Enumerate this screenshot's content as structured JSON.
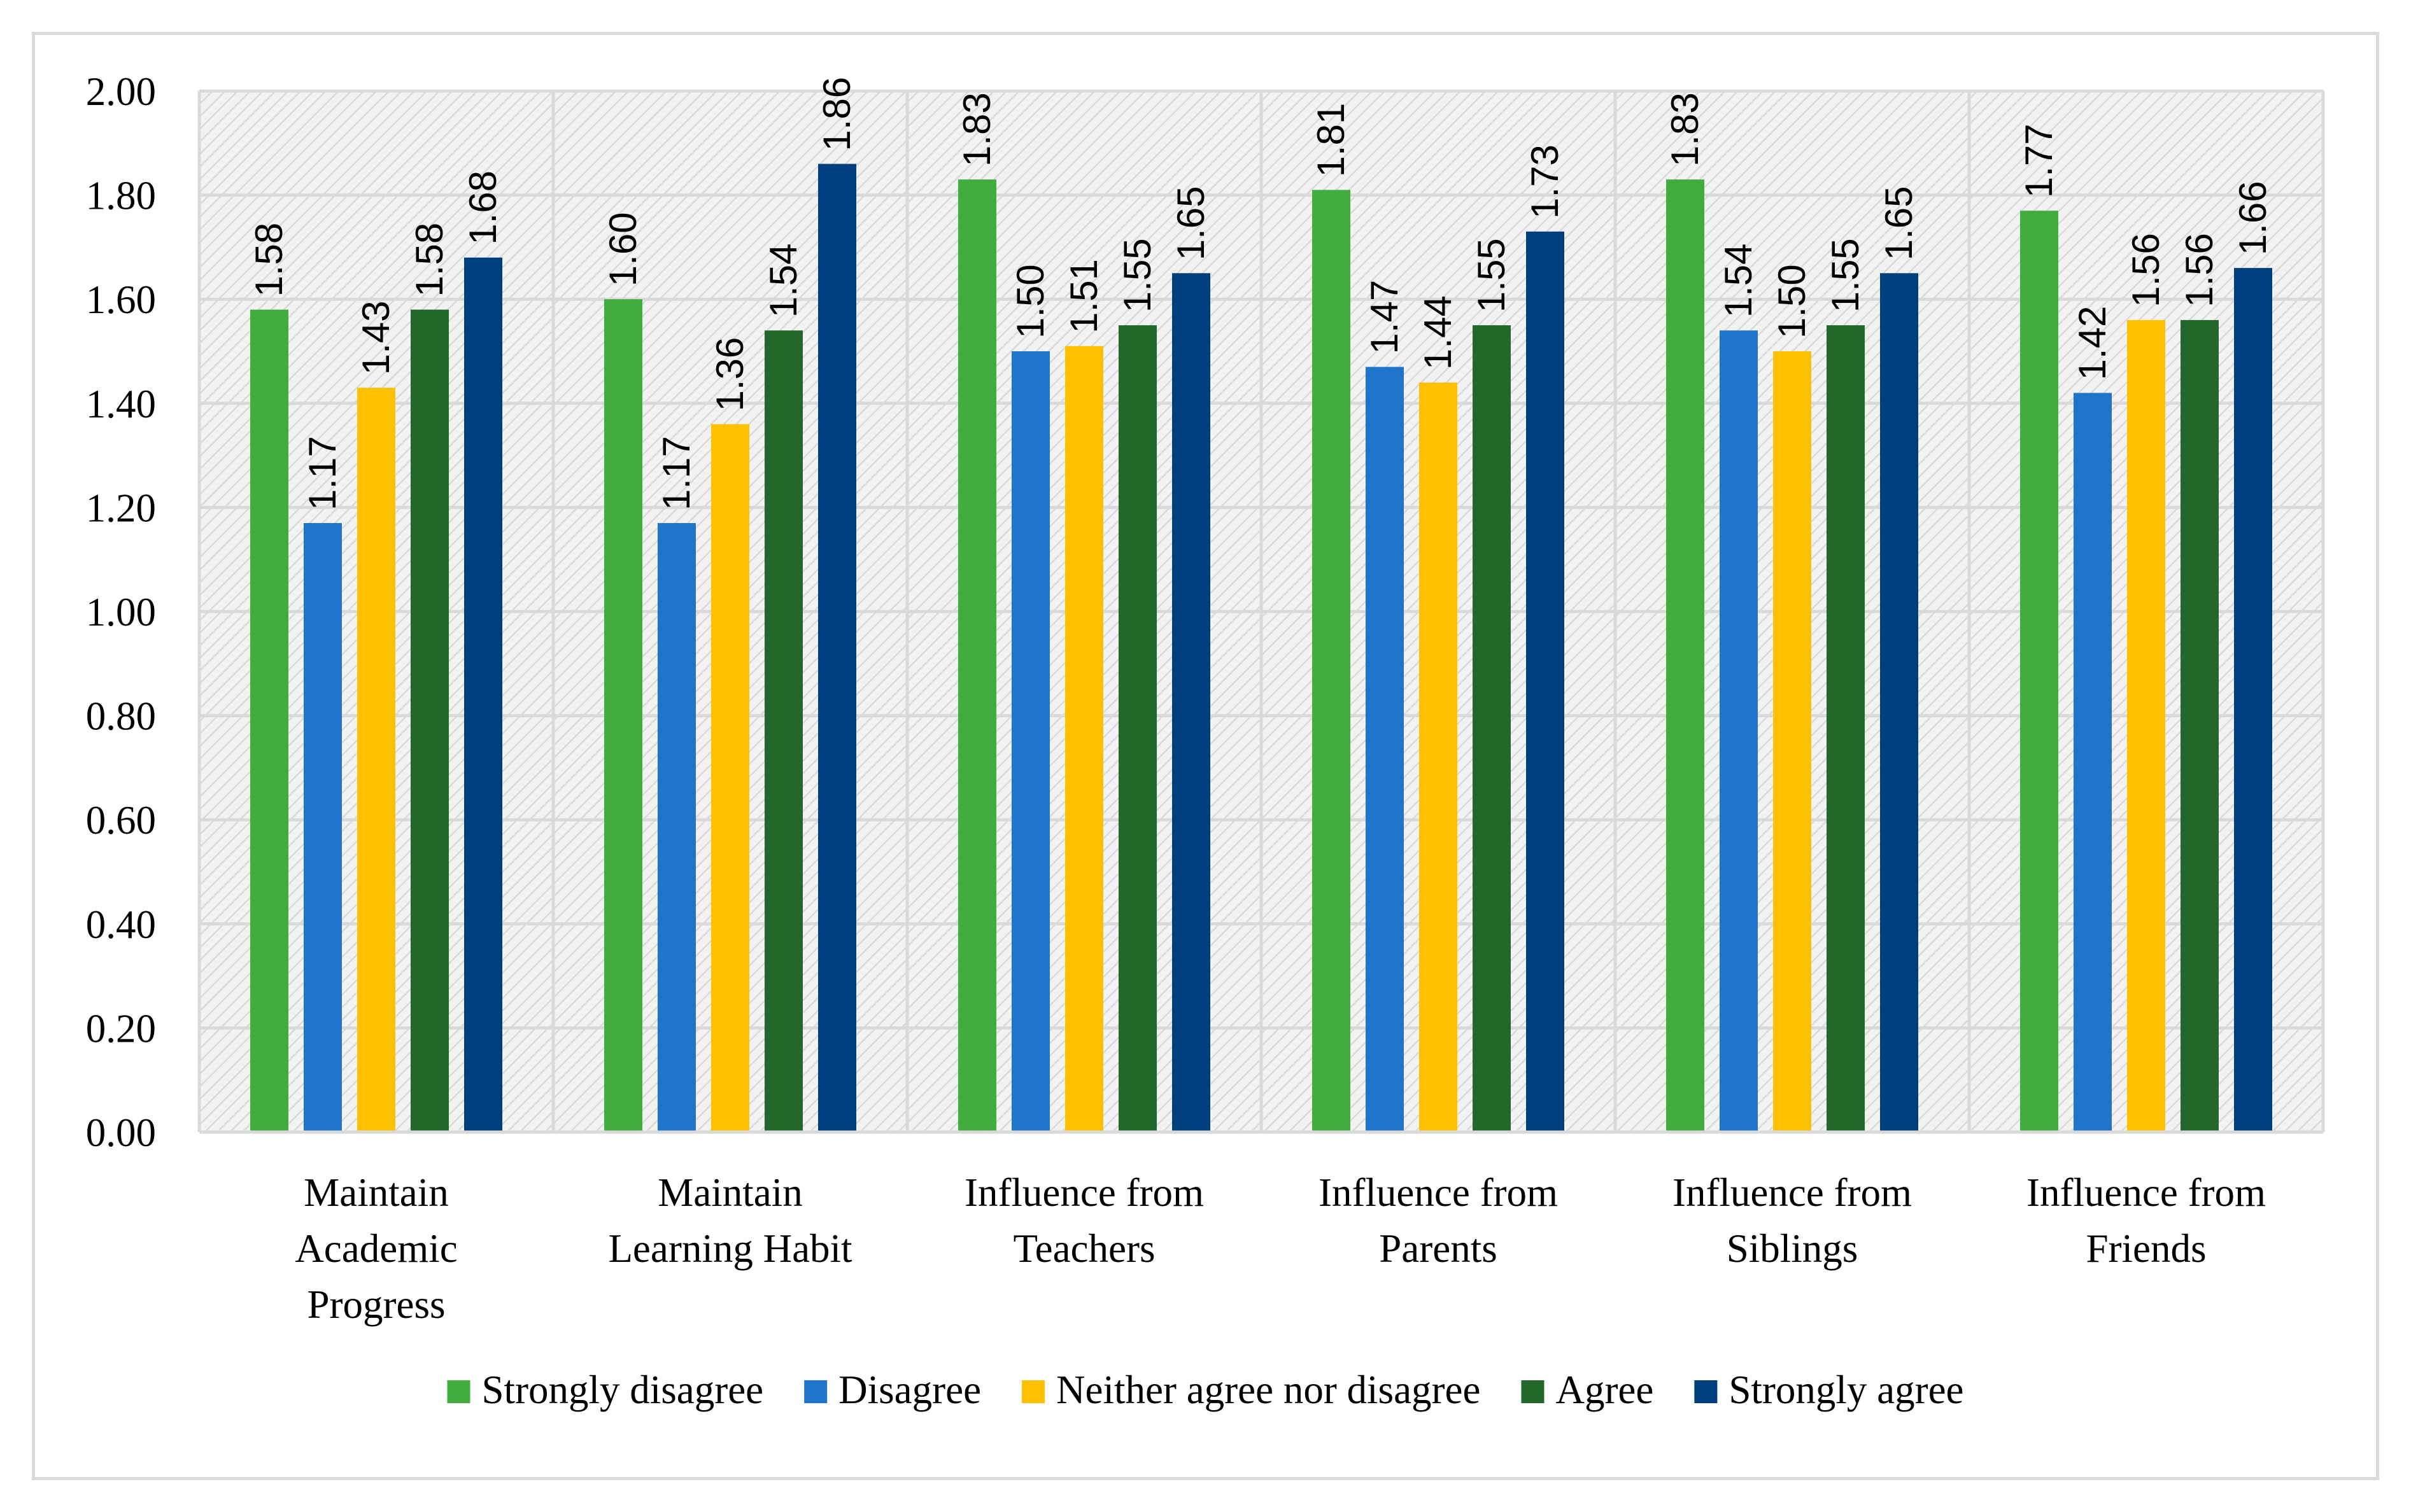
{
  "chart_data": {
    "type": "bar",
    "title": "",
    "xlabel": "",
    "ylabel": "",
    "ylim": [
      0,
      2
    ],
    "yticks": [
      "0.00",
      "0.20",
      "0.40",
      "0.60",
      "0.80",
      "1.00",
      "1.20",
      "1.40",
      "1.60",
      "1.80",
      "2.00"
    ],
    "grid": true,
    "legend_position": "bottom",
    "categories": [
      [
        "Maintain",
        "Academic",
        "Progress"
      ],
      [
        "Maintain",
        "Learning Habit"
      ],
      [
        "Influence from",
        "Teachers"
      ],
      [
        "Influence from",
        "Parents"
      ],
      [
        "Influence from",
        "Siblings"
      ],
      [
        "Influence from",
        "Friends"
      ]
    ],
    "series": [
      {
        "name": "Strongly disagree",
        "color": "#40ad3e",
        "values": [
          1.58,
          1.6,
          1.83,
          1.81,
          1.83,
          1.77
        ]
      },
      {
        "name": "Disagree",
        "color": "#1f74cb",
        "values": [
          1.17,
          1.17,
          1.5,
          1.47,
          1.54,
          1.42
        ]
      },
      {
        "name": "Neither agree nor disagree",
        "color": "#ffc000",
        "values": [
          1.43,
          1.36,
          1.51,
          1.44,
          1.5,
          1.56
        ]
      },
      {
        "name": "Agree",
        "color": "#23672a",
        "values": [
          1.58,
          1.54,
          1.55,
          1.55,
          1.55,
          1.56
        ]
      },
      {
        "name": "Strongly agree",
        "color": "#003f7d",
        "values": [
          1.68,
          1.86,
          1.65,
          1.73,
          1.65,
          1.66
        ]
      }
    ]
  }
}
